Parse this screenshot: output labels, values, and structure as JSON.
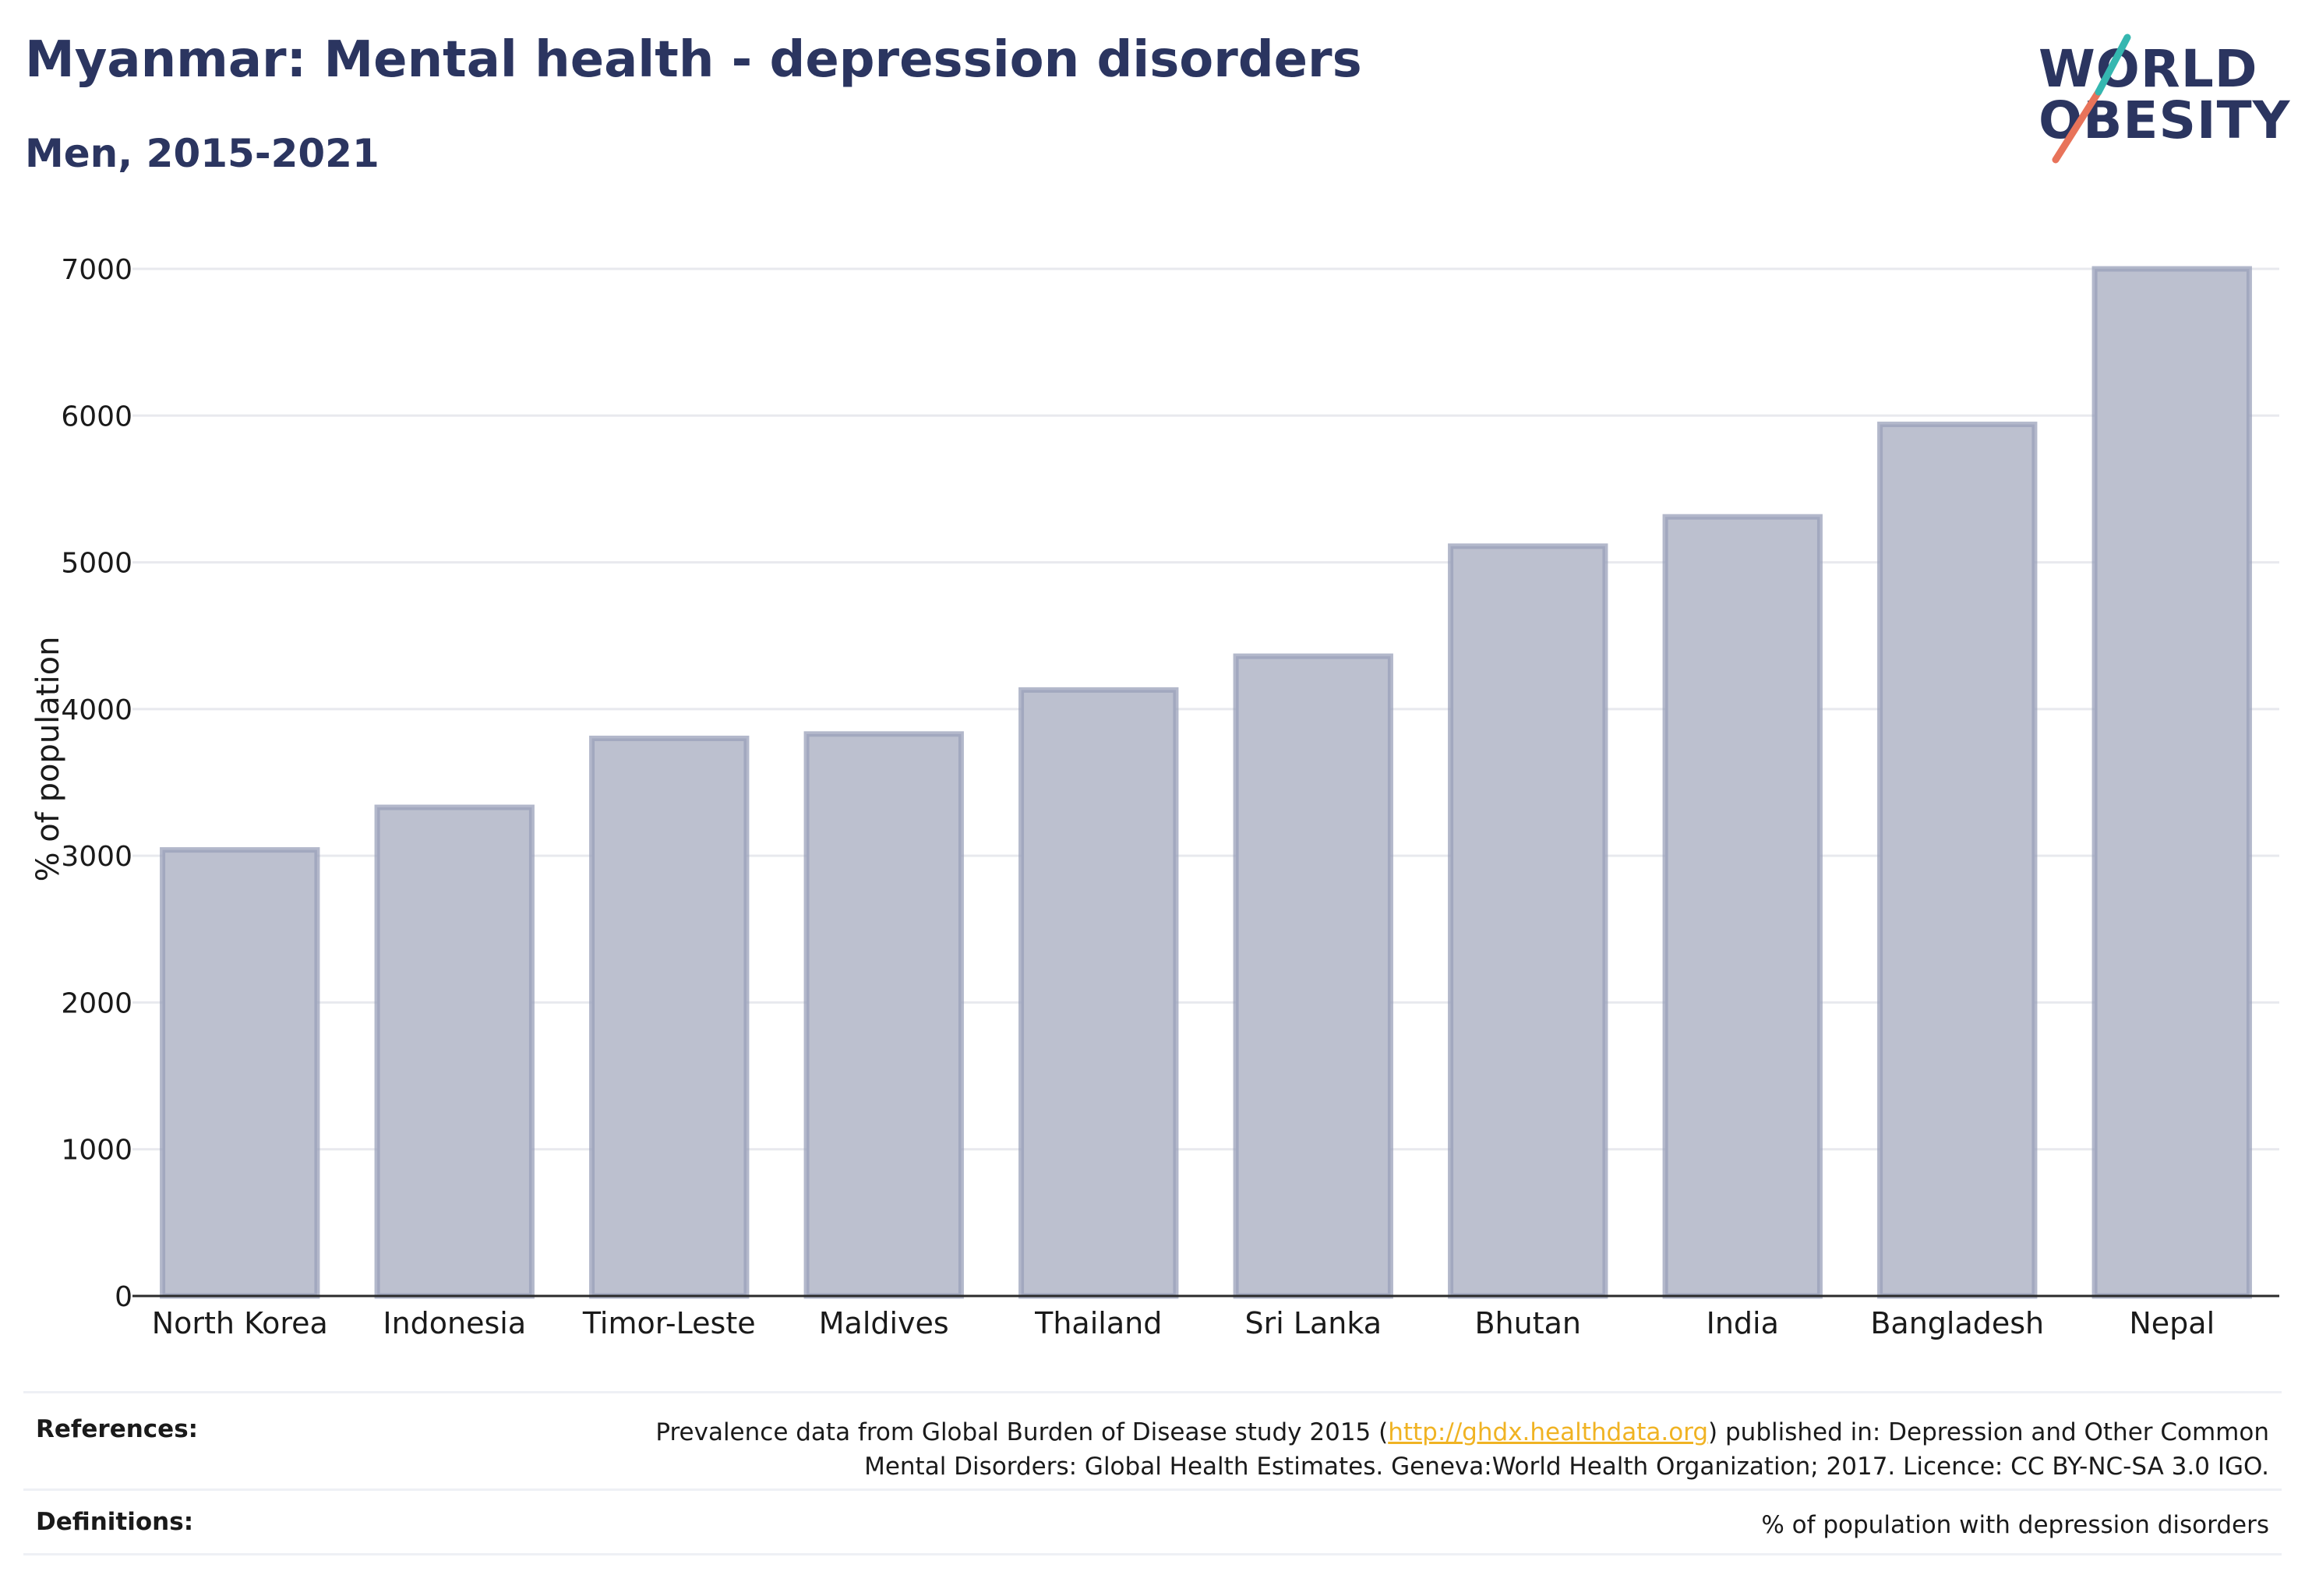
{
  "header": {
    "title": "Myanmar: Mental health - depression disorders",
    "subtitle": "Men, 2015-2021"
  },
  "logo": {
    "line1": "WORLD",
    "line2": "OBESITY"
  },
  "colors": {
    "bar_fill": "#bcc0cf",
    "bar_stroke": "#9aa0b9",
    "text": "#2b3560",
    "grid": "#e8e9ee",
    "link": "#f0b323"
  },
  "chart_data": {
    "type": "bar",
    "categories": [
      "North Korea",
      "Indonesia",
      "Timor-Leste",
      "Maldives",
      "Thailand",
      "Sri Lanka",
      "Bhutan",
      "India",
      "Bangladesh",
      "Nepal"
    ],
    "values": [
      3040,
      3330,
      3800,
      3830,
      4130,
      4360,
      5110,
      5310,
      5940,
      7000
    ],
    "ylabel": "% of population",
    "xlabel": "",
    "ylim": [
      0,
      7000
    ],
    "yticks": [
      0,
      1000,
      2000,
      3000,
      4000,
      5000,
      6000,
      7000
    ],
    "grid": true
  },
  "footer": {
    "references_label": "References:",
    "references_text_before": "Prevalence data from Global Burden of Disease study 2015 (",
    "references_link": "http://ghdx.healthdata.org",
    "references_text_after": ") published in: Depression and Other Common",
    "references_text_line2": "Mental Disorders: Global Health Estimates. Geneva:World Health Organization; 2017. Licence: CC BY-NC-SA 3.0 IGO.",
    "definitions_label": "Definitions:",
    "definitions_text": "% of population with depression disorders"
  }
}
